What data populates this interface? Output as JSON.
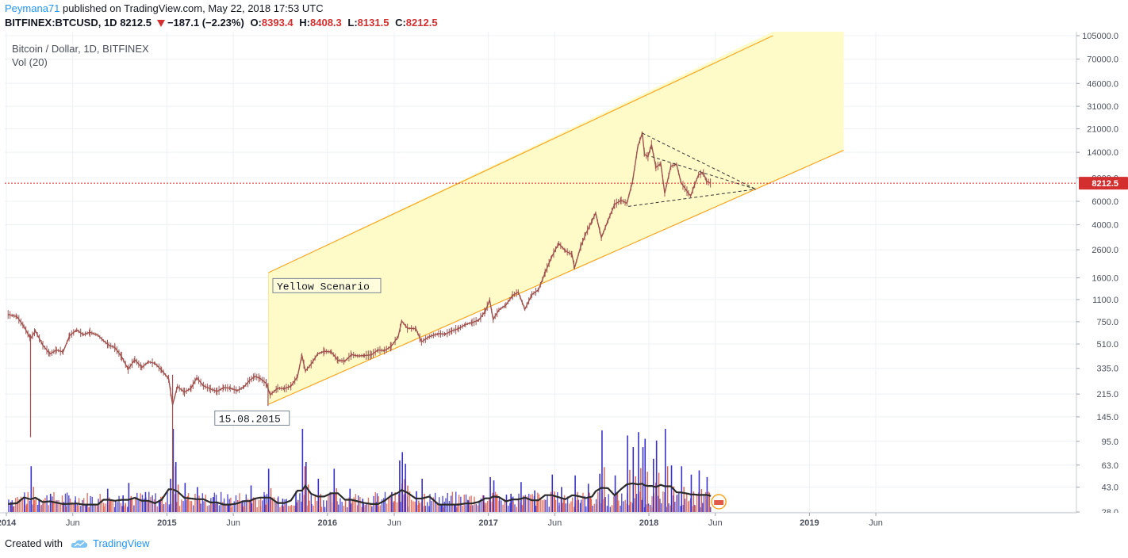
{
  "header": {
    "author": "Peymana71",
    "published_text": "published on TradingView.com, May 22, 2018 17:53 UTC",
    "symbol": "BITFINEX:BTCUSD, 1D",
    "last": "8212.5",
    "change": "−187.1 (−2.23%)",
    "o_label": "O:",
    "o": "8393.4",
    "h_label": "H:",
    "h": "8408.3",
    "l_label": "L:",
    "l": "8131.5",
    "c_label": "C:",
    "c": "8212.5"
  },
  "legend": {
    "title": "Bitcoin / Dollar, 1D, BITFINEX",
    "volume": "Vol (20)"
  },
  "footer": {
    "created_with": "Created with",
    "brand": "TradingView"
  },
  "chart_data": {
    "type": "line",
    "scale": "log",
    "price_ticks": [
      "105000.0",
      "70000.0",
      "46000.0",
      "31000.0",
      "21000.0",
      "14000.0",
      "9000.0",
      "6000.0",
      "4000.0",
      "2600.0",
      "1600.0",
      "1100.0",
      "750.0",
      "510.0",
      "335.0",
      "215.0",
      "145.0",
      "95.0",
      "63.0",
      "43.0",
      "28.0"
    ],
    "time_ticks": [
      {
        "label": "2014",
        "date": "2014-01-01",
        "bold": true
      },
      {
        "label": "Jun",
        "date": "2014-06-01",
        "bold": false
      },
      {
        "label": "2015",
        "date": "2015-01-01",
        "bold": true
      },
      {
        "label": "Jun",
        "date": "2015-06-01",
        "bold": false
      },
      {
        "label": "2016",
        "date": "2016-01-01",
        "bold": true
      },
      {
        "label": "Jun",
        "date": "2016-06-01",
        "bold": false
      },
      {
        "label": "2017",
        "date": "2017-01-01",
        "bold": true
      },
      {
        "label": "Jun",
        "date": "2017-06-01",
        "bold": false
      },
      {
        "label": "2018",
        "date": "2018-01-01",
        "bold": true
      },
      {
        "label": "Jun",
        "date": "2018-06-01",
        "bold": false
      },
      {
        "label": "2019",
        "date": "2019-01-01",
        "bold": true
      },
      {
        "label": "Jun",
        "date": "2019-06-01",
        "bold": false
      }
    ],
    "last_price": 8212.5,
    "last_price_label": "8212.5",
    "series": [
      {
        "values": [
          [
            "2014-01-05",
            850
          ],
          [
            "2014-01-25",
            820
          ],
          [
            "2014-02-10",
            690
          ],
          [
            "2014-02-25",
            560
          ],
          [
            "2014-03-08",
            640
          ],
          [
            "2014-03-25",
            500
          ],
          [
            "2014-04-10",
            430
          ],
          [
            "2014-04-25",
            460
          ],
          [
            "2014-05-10",
            445
          ],
          [
            "2014-05-25",
            590
          ],
          [
            "2014-06-10",
            650
          ],
          [
            "2014-06-25",
            600
          ],
          [
            "2014-07-10",
            625
          ],
          [
            "2014-07-28",
            595
          ],
          [
            "2014-08-10",
            540
          ],
          [
            "2014-08-22",
            500
          ],
          [
            "2014-09-05",
            480
          ],
          [
            "2014-09-20",
            410
          ],
          [
            "2014-10-05",
            330
          ],
          [
            "2014-10-20",
            390
          ],
          [
            "2014-11-05",
            340
          ],
          [
            "2014-11-20",
            375
          ],
          [
            "2014-12-05",
            365
          ],
          [
            "2014-12-20",
            325
          ],
          [
            "2015-01-05",
            280
          ],
          [
            "2015-01-14",
            178
          ],
          [
            "2015-01-25",
            245
          ],
          [
            "2015-02-10",
            222
          ],
          [
            "2015-02-25",
            238
          ],
          [
            "2015-03-10",
            285
          ],
          [
            "2015-03-25",
            248
          ],
          [
            "2015-04-10",
            235
          ],
          [
            "2015-04-25",
            225
          ],
          [
            "2015-05-10",
            240
          ],
          [
            "2015-05-25",
            238
          ],
          [
            "2015-06-10",
            228
          ],
          [
            "2015-06-25",
            243
          ],
          [
            "2015-07-08",
            272
          ],
          [
            "2015-07-20",
            292
          ],
          [
            "2015-08-01",
            282
          ],
          [
            "2015-08-15",
            258
          ],
          [
            "2015-08-24",
            212
          ],
          [
            "2015-09-10",
            238
          ],
          [
            "2015-09-25",
            236
          ],
          [
            "2015-10-10",
            246
          ],
          [
            "2015-10-25",
            290
          ],
          [
            "2015-11-04",
            420
          ],
          [
            "2015-11-12",
            320
          ],
          [
            "2015-11-25",
            360
          ],
          [
            "2015-12-10",
            430
          ],
          [
            "2015-12-25",
            450
          ],
          [
            "2016-01-10",
            445
          ],
          [
            "2016-01-25",
            385
          ],
          [
            "2016-02-10",
            380
          ],
          [
            "2016-02-25",
            425
          ],
          [
            "2016-03-10",
            415
          ],
          [
            "2016-03-25",
            418
          ],
          [
            "2016-04-10",
            423
          ],
          [
            "2016-04-25",
            460
          ],
          [
            "2016-05-10",
            455
          ],
          [
            "2016-05-25",
            490
          ],
          [
            "2016-06-10",
            580
          ],
          [
            "2016-06-18",
            760
          ],
          [
            "2016-07-01",
            670
          ],
          [
            "2016-07-20",
            665
          ],
          [
            "2016-08-02",
            530
          ],
          [
            "2016-08-20",
            580
          ],
          [
            "2016-09-10",
            610
          ],
          [
            "2016-09-25",
            605
          ],
          [
            "2016-10-10",
            640
          ],
          [
            "2016-10-25",
            665
          ],
          [
            "2016-11-10",
            715
          ],
          [
            "2016-11-25",
            740
          ],
          [
            "2016-12-10",
            770
          ],
          [
            "2016-12-25",
            900
          ],
          [
            "2017-01-04",
            1090
          ],
          [
            "2017-01-12",
            780
          ],
          [
            "2017-01-25",
            920
          ],
          [
            "2017-02-10",
            1000
          ],
          [
            "2017-02-25",
            1180
          ],
          [
            "2017-03-10",
            1250
          ],
          [
            "2017-03-25",
            930
          ],
          [
            "2017-04-10",
            1200
          ],
          [
            "2017-04-25",
            1300
          ],
          [
            "2017-05-10",
            1750
          ],
          [
            "2017-05-25",
            2300
          ],
          [
            "2017-06-10",
            2900
          ],
          [
            "2017-06-25",
            2550
          ],
          [
            "2017-07-10",
            2400
          ],
          [
            "2017-07-16",
            1900
          ],
          [
            "2017-07-30",
            2750
          ],
          [
            "2017-08-10",
            3400
          ],
          [
            "2017-08-25",
            4300
          ],
          [
            "2017-09-02",
            4900
          ],
          [
            "2017-09-15",
            3200
          ],
          [
            "2017-09-30",
            4300
          ],
          [
            "2017-10-15",
            5700
          ],
          [
            "2017-10-30",
            6100
          ],
          [
            "2017-11-12",
            5800
          ],
          [
            "2017-11-25",
            8500
          ],
          [
            "2017-12-07",
            15500
          ],
          [
            "2017-12-17",
            19500
          ],
          [
            "2017-12-22",
            13500
          ],
          [
            "2017-12-30",
            13000
          ],
          [
            "2018-01-07",
            16000
          ],
          [
            "2018-01-17",
            10800
          ],
          [
            "2018-01-28",
            11500
          ],
          [
            "2018-02-06",
            6900
          ],
          [
            "2018-02-20",
            11000
          ],
          [
            "2018-03-05",
            11400
          ],
          [
            "2018-03-15",
            8300
          ],
          [
            "2018-04-01",
            6900
          ],
          [
            "2018-04-06",
            6600
          ],
          [
            "2018-04-15",
            8000
          ],
          [
            "2018-04-24",
            9500
          ],
          [
            "2018-05-05",
            9800
          ],
          [
            "2018-05-12",
            8500
          ],
          [
            "2018-05-22",
            8212.5
          ]
        ]
      }
    ],
    "volume_bars": [
      {
        "date": "2014-01-10",
        "value": 0.12
      },
      {
        "date": "2014-02-10",
        "value": 0.18
      },
      {
        "date": "2014-02-25",
        "value": 0.55
      },
      {
        "date": "2014-03-15",
        "value": 0.16
      },
      {
        "date": "2014-04-10",
        "value": 0.22
      },
      {
        "date": "2014-05-10",
        "value": 0.12
      },
      {
        "date": "2014-06-05",
        "value": 0.14
      },
      {
        "date": "2014-07-01",
        "value": 0.1
      },
      {
        "date": "2014-08-18",
        "value": 0.28
      },
      {
        "date": "2014-09-22",
        "value": 0.2
      },
      {
        "date": "2014-10-05",
        "value": 0.35
      },
      {
        "date": "2014-11-12",
        "value": 0.24
      },
      {
        "date": "2014-12-15",
        "value": 0.15
      },
      {
        "date": "2015-01-08",
        "value": 0.4
      },
      {
        "date": "2015-01-14",
        "value": 1.0
      },
      {
        "date": "2015-01-20",
        "value": 0.6
      },
      {
        "date": "2015-02-10",
        "value": 0.35
      },
      {
        "date": "2015-03-10",
        "value": 0.3
      },
      {
        "date": "2015-04-15",
        "value": 0.18
      },
      {
        "date": "2015-05-20",
        "value": 0.1
      },
      {
        "date": "2015-06-20",
        "value": 0.14
      },
      {
        "date": "2015-07-10",
        "value": 0.32
      },
      {
        "date": "2015-08-10",
        "value": 0.2
      },
      {
        "date": "2015-08-19",
        "value": 0.52
      },
      {
        "date": "2015-09-20",
        "value": 0.16
      },
      {
        "date": "2015-10-20",
        "value": 0.25
      },
      {
        "date": "2015-11-04",
        "value": 1.0
      },
      {
        "date": "2015-11-12",
        "value": 0.6
      },
      {
        "date": "2015-12-10",
        "value": 0.4
      },
      {
        "date": "2016-01-15",
        "value": 0.52
      },
      {
        "date": "2016-02-20",
        "value": 0.28
      },
      {
        "date": "2016-03-20",
        "value": 0.16
      },
      {
        "date": "2016-04-20",
        "value": 0.12
      },
      {
        "date": "2016-05-25",
        "value": 0.24
      },
      {
        "date": "2016-06-12",
        "value": 0.62
      },
      {
        "date": "2016-06-18",
        "value": 0.72
      },
      {
        "date": "2016-06-25",
        "value": 0.58
      },
      {
        "date": "2016-07-20",
        "value": 0.25
      },
      {
        "date": "2016-08-02",
        "value": 0.4
      },
      {
        "date": "2016-09-15",
        "value": 0.1
      },
      {
        "date": "2016-10-15",
        "value": 0.1
      },
      {
        "date": "2016-11-15",
        "value": 0.14
      },
      {
        "date": "2016-12-20",
        "value": 0.2
      },
      {
        "date": "2017-01-04",
        "value": 0.42
      },
      {
        "date": "2017-01-12",
        "value": 0.38
      },
      {
        "date": "2017-02-20",
        "value": 0.22
      },
      {
        "date": "2017-03-15",
        "value": 0.36
      },
      {
        "date": "2017-04-15",
        "value": 0.26
      },
      {
        "date": "2017-05-25",
        "value": 0.45
      },
      {
        "date": "2017-06-15",
        "value": 0.3
      },
      {
        "date": "2017-07-16",
        "value": 0.44
      },
      {
        "date": "2017-08-15",
        "value": 0.34
      },
      {
        "date": "2017-09-10",
        "value": 0.46
      },
      {
        "date": "2017-09-15",
        "value": 0.98
      },
      {
        "date": "2017-10-15",
        "value": 0.44
      },
      {
        "date": "2017-11-12",
        "value": 0.92
      },
      {
        "date": "2017-11-25",
        "value": 0.78
      },
      {
        "date": "2017-12-07",
        "value": 0.96
      },
      {
        "date": "2017-12-17",
        "value": 0.78
      },
      {
        "date": "2017-12-22",
        "value": 0.88
      },
      {
        "date": "2018-01-10",
        "value": 0.64
      },
      {
        "date": "2018-01-17",
        "value": 0.86
      },
      {
        "date": "2018-02-06",
        "value": 1.0
      },
      {
        "date": "2018-02-20",
        "value": 0.56
      },
      {
        "date": "2018-03-15",
        "value": 0.55
      },
      {
        "date": "2018-04-06",
        "value": 0.45
      },
      {
        "date": "2018-04-24",
        "value": 0.5
      },
      {
        "date": "2018-05-12",
        "value": 0.42
      }
    ],
    "channel": {
      "upper": [
        [
          "2015-08-20",
          1750
        ],
        [
          "2018-10-10",
          105000
        ]
      ],
      "lower": [
        [
          "2015-08-20",
          180
        ],
        [
          "2019-03-20",
          14500
        ]
      ],
      "fill_start": "2015-08-20",
      "fill_end": "2019-03-20"
    },
    "triangle": {
      "top": [
        [
          "2017-12-17",
          19500
        ],
        [
          "2018-09-01",
          7400
        ]
      ],
      "bottom": [
        [
          "2017-11-15",
          5500
        ],
        [
          "2018-09-01",
          7400
        ]
      ],
      "mid": [
        [
          "2018-01-07",
          13000
        ],
        [
          "2018-09-01",
          7400
        ]
      ]
    },
    "annotations": [
      {
        "text": "Yellow Scenario",
        "date": "2015-08-30",
        "price": 1380
      },
      {
        "text": "15.08.2015",
        "date": "2015-04-20",
        "price": 140
      }
    ],
    "colors": {
      "channel_line": "#f5a623",
      "channel_fill": "#fffbc9",
      "candle": "#a0524f",
      "volume_blue": "#3a31c9",
      "volume_red": "#e05b4a",
      "volume_ma": "#2b2b2b",
      "last_price": "#d32f2f",
      "grid": "#eef0f3"
    }
  }
}
